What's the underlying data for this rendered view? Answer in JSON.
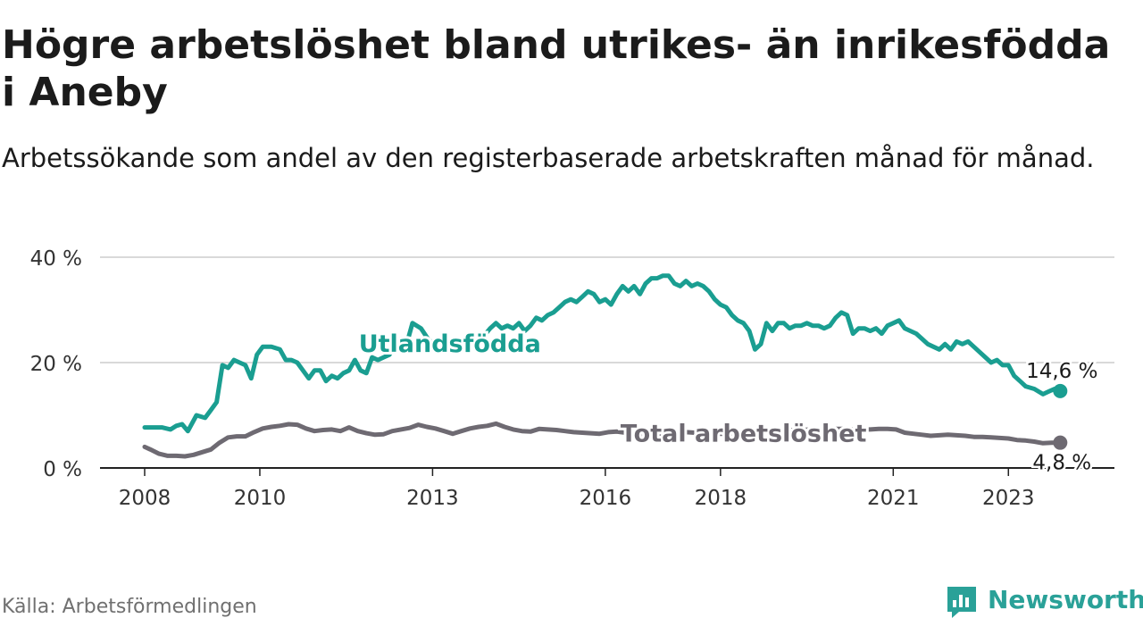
{
  "header": {
    "title": "Högre arbetslöshet bland utrikes- än inrikesfödda i Aneby",
    "subtitle": "Arbetssökande som andel av den registerbaserade arbetskraften månad för månad."
  },
  "footer": {
    "source": "Källa: Arbetsförmedlingen",
    "brand": "Newsworthy"
  },
  "colors": {
    "utlandsfodda": "#1a9e91",
    "total": "#6e6a72",
    "grid": "#d9d9d9",
    "axis": "#222222",
    "brand": "#2aa198"
  },
  "chart_data": {
    "type": "line",
    "title": "Högre arbetslöshet bland utrikes- än inrikesfödda i Aneby",
    "xlabel": "",
    "ylabel": "",
    "ylim": [
      0,
      40
    ],
    "y_ticks": [
      0,
      20,
      40
    ],
    "y_tick_labels": [
      "0 %",
      "20 %",
      "40 %"
    ],
    "x_range": [
      2008.0,
      2024.5
    ],
    "x_ticks": [
      2008,
      2010,
      2013,
      2016,
      2018,
      2021,
      2023
    ],
    "x_tick_labels": [
      "2008",
      "2010",
      "2013",
      "2016",
      "2018",
      "2021",
      "2023"
    ],
    "grid": true,
    "series": [
      {
        "name": "Utlandsfödda",
        "label": "Utlandsfödda",
        "color": "#1a9e91",
        "end_label": "14,6 %",
        "end_value": 14.6,
        "points": [
          [
            2008.0,
            7.7
          ],
          [
            2008.15,
            7.7
          ],
          [
            2008.3,
            7.7
          ],
          [
            2008.45,
            7.3
          ],
          [
            2008.55,
            8.0
          ],
          [
            2008.65,
            8.3
          ],
          [
            2008.75,
            7.0
          ],
          [
            2008.9,
            10.0
          ],
          [
            2009.05,
            9.5
          ],
          [
            2009.15,
            11.0
          ],
          [
            2009.25,
            12.5
          ],
          [
            2009.35,
            19.5
          ],
          [
            2009.45,
            19.0
          ],
          [
            2009.55,
            20.5
          ],
          [
            2009.65,
            20.0
          ],
          [
            2009.75,
            19.5
          ],
          [
            2009.85,
            17.0
          ],
          [
            2009.95,
            21.5
          ],
          [
            2010.05,
            23.0
          ],
          [
            2010.2,
            23.0
          ],
          [
            2010.35,
            22.5
          ],
          [
            2010.45,
            20.5
          ],
          [
            2010.55,
            20.5
          ],
          [
            2010.65,
            20.0
          ],
          [
            2010.75,
            18.5
          ],
          [
            2010.85,
            17.0
          ],
          [
            2010.95,
            18.5
          ],
          [
            2011.05,
            18.5
          ],
          [
            2011.15,
            16.5
          ],
          [
            2011.25,
            17.5
          ],
          [
            2011.35,
            17.0
          ],
          [
            2011.45,
            18.0
          ],
          [
            2011.55,
            18.5
          ],
          [
            2011.65,
            20.5
          ],
          [
            2011.75,
            18.5
          ],
          [
            2011.85,
            18.0
          ],
          [
            2011.95,
            21.0
          ],
          [
            2012.05,
            20.5
          ],
          [
            2012.15,
            21.0
          ],
          [
            2012.25,
            21.5
          ],
          [
            2012.35,
            24.0
          ],
          [
            2012.45,
            24.5
          ],
          [
            2012.55,
            23.5
          ],
          [
            2012.65,
            27.5
          ],
          [
            2012.8,
            26.5
          ],
          [
            2012.95,
            24.0
          ],
          [
            2013.1,
            24.0
          ],
          [
            2013.3,
            23.5
          ],
          [
            2013.5,
            23.0
          ],
          [
            2013.7,
            23.5
          ],
          [
            2013.85,
            24.5
          ],
          [
            2014.0,
            26.5
          ],
          [
            2014.1,
            27.5
          ],
          [
            2014.2,
            26.5
          ],
          [
            2014.3,
            27.0
          ],
          [
            2014.4,
            26.5
          ],
          [
            2014.5,
            27.5
          ],
          [
            2014.6,
            26.0
          ],
          [
            2014.7,
            27.0
          ],
          [
            2014.8,
            28.5
          ],
          [
            2014.9,
            28.0
          ],
          [
            2015.0,
            29.0
          ],
          [
            2015.1,
            29.5
          ],
          [
            2015.2,
            30.5
          ],
          [
            2015.3,
            31.5
          ],
          [
            2015.4,
            32.0
          ],
          [
            2015.5,
            31.5
          ],
          [
            2015.6,
            32.5
          ],
          [
            2015.7,
            33.5
          ],
          [
            2015.8,
            33.0
          ],
          [
            2015.9,
            31.5
          ],
          [
            2016.0,
            32.0
          ],
          [
            2016.1,
            31.0
          ],
          [
            2016.2,
            33.0
          ],
          [
            2016.3,
            34.5
          ],
          [
            2016.4,
            33.5
          ],
          [
            2016.5,
            34.5
          ],
          [
            2016.6,
            33.0
          ],
          [
            2016.7,
            35.0
          ],
          [
            2016.8,
            36.0
          ],
          [
            2016.9,
            36.0
          ],
          [
            2017.0,
            36.5
          ],
          [
            2017.1,
            36.5
          ],
          [
            2017.2,
            35.0
          ],
          [
            2017.3,
            34.5
          ],
          [
            2017.4,
            35.5
          ],
          [
            2017.5,
            34.5
          ],
          [
            2017.6,
            35.0
          ],
          [
            2017.7,
            34.5
          ],
          [
            2017.8,
            33.5
          ],
          [
            2017.9,
            32.0
          ],
          [
            2018.0,
            31.0
          ],
          [
            2018.1,
            30.5
          ],
          [
            2018.2,
            29.0
          ],
          [
            2018.3,
            28.0
          ],
          [
            2018.4,
            27.5
          ],
          [
            2018.5,
            26.0
          ],
          [
            2018.6,
            22.5
          ],
          [
            2018.7,
            23.5
          ],
          [
            2018.8,
            27.5
          ],
          [
            2018.9,
            26.0
          ],
          [
            2019.0,
            27.5
          ],
          [
            2019.1,
            27.5
          ],
          [
            2019.2,
            26.5
          ],
          [
            2019.3,
            27.0
          ],
          [
            2019.4,
            27.0
          ],
          [
            2019.5,
            27.5
          ],
          [
            2019.6,
            27.0
          ],
          [
            2019.7,
            27.0
          ],
          [
            2019.8,
            26.5
          ],
          [
            2019.9,
            27.0
          ],
          [
            2020.0,
            28.5
          ],
          [
            2020.1,
            29.5
          ],
          [
            2020.2,
            29.0
          ],
          [
            2020.3,
            25.5
          ],
          [
            2020.4,
            26.5
          ],
          [
            2020.5,
            26.5
          ],
          [
            2020.6,
            26.0
          ],
          [
            2020.7,
            26.5
          ],
          [
            2020.8,
            25.5
          ],
          [
            2020.9,
            27.0
          ],
          [
            2021.0,
            27.5
          ],
          [
            2021.1,
            28.0
          ],
          [
            2021.2,
            26.5
          ],
          [
            2021.3,
            26.0
          ],
          [
            2021.4,
            25.5
          ],
          [
            2021.5,
            24.5
          ],
          [
            2021.6,
            23.5
          ],
          [
            2021.7,
            23.0
          ],
          [
            2021.8,
            22.5
          ],
          [
            2021.9,
            23.5
          ],
          [
            2022.0,
            22.5
          ],
          [
            2022.1,
            24.0
          ],
          [
            2022.2,
            23.5
          ],
          [
            2022.3,
            24.0
          ],
          [
            2022.4,
            23.0
          ],
          [
            2022.5,
            22.0
          ],
          [
            2022.6,
            21.0
          ],
          [
            2022.7,
            20.0
          ],
          [
            2022.8,
            20.5
          ],
          [
            2022.9,
            19.5
          ],
          [
            2023.0,
            19.5
          ],
          [
            2023.1,
            17.5
          ],
          [
            2023.2,
            16.5
          ],
          [
            2023.3,
            15.5
          ],
          [
            2023.45,
            15.0
          ],
          [
            2023.6,
            14.0
          ],
          [
            2023.7,
            14.5
          ],
          [
            2023.8,
            15.0
          ],
          [
            2023.9,
            14.6
          ]
        ]
      },
      {
        "name": "Total arbetslöshet",
        "label": "Total arbetslöshet",
        "color": "#6e6a72",
        "end_label": "4,8 %",
        "end_value": 4.8,
        "points": [
          [
            2008.0,
            4.0
          ],
          [
            2008.1,
            3.5
          ],
          [
            2008.25,
            2.7
          ],
          [
            2008.4,
            2.3
          ],
          [
            2008.55,
            2.3
          ],
          [
            2008.7,
            2.2
          ],
          [
            2008.85,
            2.5
          ],
          [
            2009.0,
            3.0
          ],
          [
            2009.15,
            3.5
          ],
          [
            2009.3,
            4.8
          ],
          [
            2009.45,
            5.8
          ],
          [
            2009.6,
            6.0
          ],
          [
            2009.75,
            6.0
          ],
          [
            2009.9,
            6.8
          ],
          [
            2010.05,
            7.5
          ],
          [
            2010.2,
            7.8
          ],
          [
            2010.35,
            8.0
          ],
          [
            2010.5,
            8.3
          ],
          [
            2010.65,
            8.2
          ],
          [
            2010.8,
            7.5
          ],
          [
            2010.95,
            7.0
          ],
          [
            2011.1,
            7.2
          ],
          [
            2011.25,
            7.3
          ],
          [
            2011.4,
            7.0
          ],
          [
            2011.55,
            7.7
          ],
          [
            2011.7,
            7.0
          ],
          [
            2011.85,
            6.6
          ],
          [
            2012.0,
            6.3
          ],
          [
            2012.15,
            6.4
          ],
          [
            2012.3,
            7.0
          ],
          [
            2012.45,
            7.3
          ],
          [
            2012.6,
            7.6
          ],
          [
            2012.75,
            8.2
          ],
          [
            2012.9,
            7.8
          ],
          [
            2013.05,
            7.5
          ],
          [
            2013.2,
            7.0
          ],
          [
            2013.35,
            6.5
          ],
          [
            2013.5,
            7.0
          ],
          [
            2013.65,
            7.5
          ],
          [
            2013.8,
            7.8
          ],
          [
            2013.95,
            8.0
          ],
          [
            2014.1,
            8.4
          ],
          [
            2014.25,
            7.8
          ],
          [
            2014.4,
            7.3
          ],
          [
            2014.55,
            7.0
          ],
          [
            2014.7,
            6.9
          ],
          [
            2014.85,
            7.4
          ],
          [
            2015.0,
            7.3
          ],
          [
            2015.15,
            7.2
          ],
          [
            2015.3,
            7.0
          ],
          [
            2015.45,
            6.8
          ],
          [
            2015.6,
            6.7
          ],
          [
            2015.75,
            6.6
          ],
          [
            2015.9,
            6.5
          ],
          [
            2016.05,
            6.8
          ],
          [
            2016.2,
            6.9
          ],
          [
            2016.35,
            6.7
          ],
          [
            2016.5,
            6.4
          ],
          [
            2016.65,
            6.3
          ],
          [
            2016.8,
            6.6
          ],
          [
            2016.95,
            6.5
          ],
          [
            2017.1,
            6.5
          ],
          [
            2017.25,
            6.7
          ],
          [
            2017.4,
            6.8
          ],
          [
            2017.55,
            6.7
          ],
          [
            2017.7,
            6.6
          ],
          [
            2017.85,
            6.5
          ],
          [
            2018.0,
            6.5
          ],
          [
            2018.2,
            6.5
          ],
          [
            2018.4,
            6.8
          ],
          [
            2018.6,
            6.9
          ],
          [
            2018.8,
            7.0
          ],
          [
            2019.0,
            7.1
          ],
          [
            2019.2,
            7.2
          ],
          [
            2019.4,
            7.2
          ],
          [
            2019.6,
            7.3
          ],
          [
            2019.8,
            7.3
          ],
          [
            2020.0,
            7.4
          ],
          [
            2020.2,
            7.4
          ],
          [
            2020.4,
            7.3
          ],
          [
            2020.6,
            7.3
          ],
          [
            2020.75,
            7.4
          ],
          [
            2020.9,
            7.4
          ],
          [
            2021.05,
            7.3
          ],
          [
            2021.2,
            6.7
          ],
          [
            2021.35,
            6.5
          ],
          [
            2021.5,
            6.3
          ],
          [
            2021.65,
            6.1
          ],
          [
            2021.8,
            6.2
          ],
          [
            2021.95,
            6.3
          ],
          [
            2022.1,
            6.2
          ],
          [
            2022.25,
            6.1
          ],
          [
            2022.4,
            5.9
          ],
          [
            2022.55,
            5.9
          ],
          [
            2022.7,
            5.8
          ],
          [
            2022.85,
            5.7
          ],
          [
            2023.0,
            5.6
          ],
          [
            2023.15,
            5.3
          ],
          [
            2023.3,
            5.2
          ],
          [
            2023.45,
            5.0
          ],
          [
            2023.6,
            4.7
          ],
          [
            2023.75,
            4.8
          ],
          [
            2023.9,
            4.8
          ]
        ]
      }
    ]
  }
}
